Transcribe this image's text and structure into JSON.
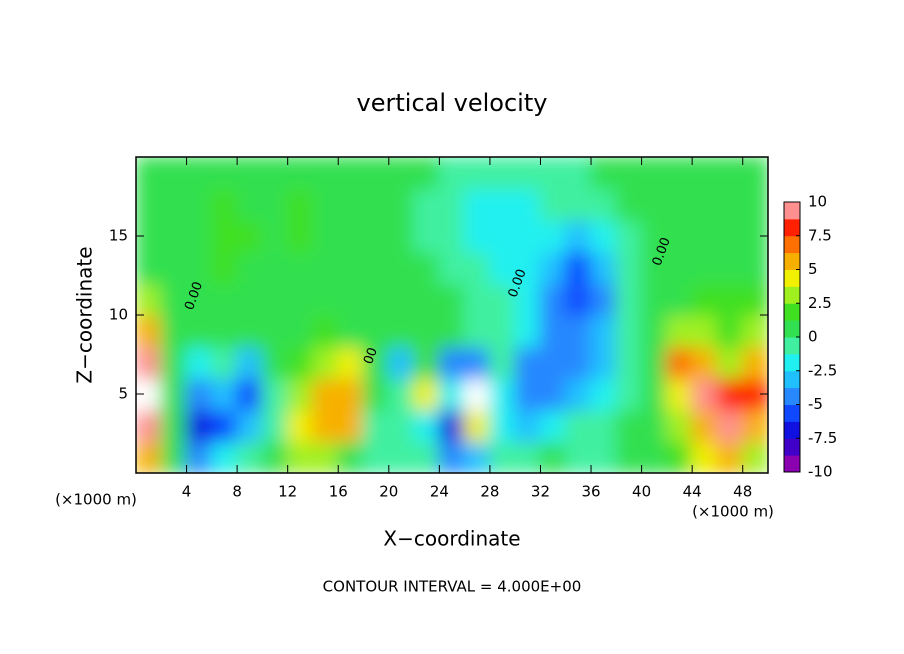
{
  "chart_data": {
    "type": "contour",
    "title": "vertical velocity",
    "xlabel": "X−coordinate",
    "ylabel": "Z−coordinate",
    "x_unit": "(×1000 m)",
    "y_unit": "(×1000 m)",
    "footer": "CONTOUR INTERVAL = 4.000E+00",
    "xlim": [
      0,
      50
    ],
    "ylim": [
      0,
      20
    ],
    "xticks": [
      4,
      8,
      12,
      16,
      20,
      24,
      28,
      32,
      36,
      40,
      44,
      48
    ],
    "yticks": [
      5,
      10,
      15
    ],
    "x": [
      1,
      3,
      5,
      7,
      9,
      11,
      13,
      15,
      17,
      19,
      21,
      23,
      25,
      27,
      29,
      31,
      33,
      35,
      37,
      39,
      41,
      43,
      45,
      47,
      49
    ],
    "z": [
      1,
      3,
      5,
      7,
      9,
      11,
      13,
      15,
      17,
      19
    ],
    "values": [
      [
        6,
        0,
        -4,
        -2,
        -1,
        0,
        3,
        3,
        1,
        -1,
        -1,
        -1,
        -4,
        -3,
        -1,
        -1,
        0,
        -0.5,
        -0.5,
        0,
        0.5,
        2,
        4,
        6,
        3
      ],
      [
        9,
        0,
        -7,
        -6,
        -3,
        -1,
        4,
        6,
        5,
        -1,
        -1,
        -2,
        -7,
        4,
        -2,
        -3,
        -2,
        -1,
        -1,
        0,
        1,
        3,
        6,
        9,
        6
      ],
      [
        10,
        1,
        -5,
        -3,
        -6,
        -1,
        3,
        5,
        6,
        1,
        -1,
        4,
        -2,
        10,
        -2,
        -5,
        -4,
        -3,
        -2,
        -0.5,
        1,
        4,
        9,
        8,
        8
      ],
      [
        9,
        1,
        -2,
        -1,
        -3,
        0,
        2,
        3,
        4,
        0,
        -3,
        2,
        -5,
        -4,
        -1,
        -4,
        -4,
        -4,
        -3,
        -1,
        1,
        7,
        6,
        3,
        6
      ],
      [
        6,
        1,
        0,
        0.5,
        0,
        0,
        1,
        2,
        1,
        0,
        0,
        0,
        0,
        -1,
        -1,
        -2,
        -4,
        -5,
        -3,
        -1,
        1,
        3,
        3,
        2,
        3
      ],
      [
        3,
        1,
        0.5,
        1,
        1,
        1,
        1,
        0.5,
        0,
        0,
        0,
        0,
        0,
        -1,
        -1,
        -2,
        -4,
        -6,
        -4,
        -1,
        1,
        1,
        1.5,
        2,
        2
      ],
      [
        1,
        0.5,
        1,
        1.5,
        1,
        1,
        1,
        0.5,
        0.5,
        0.5,
        0,
        0,
        -0.5,
        -1,
        -1.5,
        -2,
        -3,
        -6,
        -3,
        -1,
        0.5,
        0.5,
        1,
        1,
        1
      ],
      [
        0.5,
        0.5,
        1,
        1.5,
        1.5,
        1,
        1.5,
        1,
        1,
        0.5,
        0,
        -0.5,
        -1,
        -1.5,
        -2,
        -1.5,
        -2,
        -3,
        -1.5,
        -0.5,
        0.5,
        0.5,
        1,
        1,
        0.5
      ],
      [
        0.5,
        0.5,
        1,
        1.5,
        1,
        1,
        1.5,
        1,
        1,
        1,
        0,
        -0.5,
        -1,
        -1.5,
        -2,
        -1.5,
        -1,
        -1,
        -0.5,
        0,
        0.5,
        1,
        1,
        0.5,
        0.5
      ],
      [
        0.5,
        0.5,
        1,
        1,
        1,
        0.5,
        1,
        1,
        1,
        0.5,
        0,
        0,
        -0.5,
        -1,
        -1,
        -1,
        -0.5,
        -0.5,
        0,
        0,
        0.5,
        0.5,
        0.5,
        0.5,
        0.5
      ]
    ],
    "clim": [
      -10,
      10
    ],
    "colorbar_ticks": [
      10,
      7.5,
      5,
      2.5,
      0,
      -2.5,
      -5,
      -7.5,
      -10
    ],
    "colormap": [
      "#8a00b0",
      "#4000c8",
      "#1010e0",
      "#1048ff",
      "#2888ff",
      "#20c0ff",
      "#20f0f0",
      "#40f0a0",
      "#30e050",
      "#40e020",
      "#a0f020",
      "#f0f000",
      "#f8b000",
      "#ff7000",
      "#ff2000",
      "#ff9090"
    ],
    "over_color": "#ffffff",
    "annotations": [
      {
        "text": "0.00",
        "x": 4.6,
        "y": 11.2
      },
      {
        "text": "0.00",
        "x": 30.2,
        "y": 12
      },
      {
        "text": "0.00",
        "x": 41.6,
        "y": 14
      },
      {
        "text": "00",
        "x": 18.6,
        "y": 7.4
      }
    ]
  }
}
